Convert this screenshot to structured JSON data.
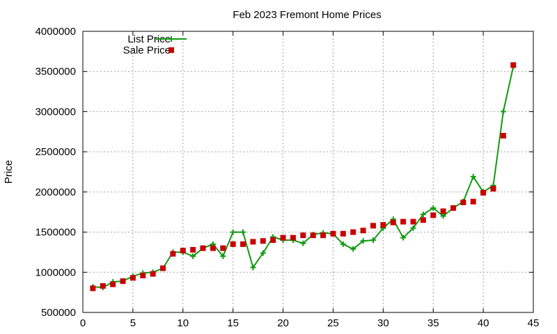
{
  "chart_data": {
    "type": "line",
    "title": "Feb 2023 Fremont Home Prices",
    "xlabel": "",
    "ylabel": "Price",
    "xlim": [
      0,
      45
    ],
    "ylim": [
      500000,
      4000000
    ],
    "x_ticks": [
      0,
      5,
      10,
      15,
      20,
      25,
      30,
      35,
      40,
      45
    ],
    "y_ticks": [
      500000,
      1000000,
      1500000,
      2000000,
      2500000,
      3000000,
      3500000,
      4000000
    ],
    "grid": true,
    "legend_position": "top-left",
    "series": [
      {
        "name": "List Price",
        "style": "line-with-plus-markers",
        "color": "#109910",
        "x": [
          1,
          2,
          3,
          4,
          5,
          6,
          7,
          8,
          9,
          10,
          11,
          12,
          13,
          14,
          15,
          16,
          17,
          18,
          19,
          20,
          21,
          22,
          23,
          24,
          25,
          26,
          27,
          28,
          29,
          30,
          31,
          32,
          33,
          34,
          35,
          36,
          37,
          38,
          39,
          40,
          41,
          42,
          43
        ],
        "values": [
          820000,
          810000,
          880000,
          890000,
          950000,
          990000,
          1000000,
          1050000,
          1250000,
          1250000,
          1200000,
          1300000,
          1350000,
          1200000,
          1500000,
          1500000,
          1060000,
          1240000,
          1440000,
          1400000,
          1400000,
          1360000,
          1470000,
          1490000,
          1480000,
          1350000,
          1290000,
          1390000,
          1400000,
          1550000,
          1660000,
          1430000,
          1550000,
          1720000,
          1800000,
          1700000,
          1800000,
          1880000,
          2190000,
          2000000,
          2080000,
          3000000,
          3560000
        ]
      },
      {
        "name": "Sale Price",
        "style": "square-markers",
        "color": "#c80000",
        "x": [
          1,
          2,
          3,
          4,
          5,
          6,
          7,
          8,
          9,
          10,
          11,
          12,
          13,
          14,
          15,
          16,
          17,
          18,
          19,
          20,
          21,
          22,
          23,
          24,
          25,
          26,
          27,
          28,
          29,
          30,
          31,
          32,
          33,
          34,
          35,
          36,
          37,
          38,
          39,
          40,
          41,
          42,
          43
        ],
        "values": [
          800000,
          830000,
          850000,
          890000,
          930000,
          960000,
          980000,
          1050000,
          1230000,
          1270000,
          1280000,
          1300000,
          1300000,
          1300000,
          1350000,
          1350000,
          1380000,
          1390000,
          1400000,
          1430000,
          1430000,
          1460000,
          1460000,
          1460000,
          1480000,
          1480000,
          1500000,
          1520000,
          1580000,
          1590000,
          1620000,
          1630000,
          1630000,
          1650000,
          1710000,
          1760000,
          1800000,
          1870000,
          1880000,
          1990000,
          2040000,
          2700000,
          3580000
        ]
      }
    ]
  }
}
